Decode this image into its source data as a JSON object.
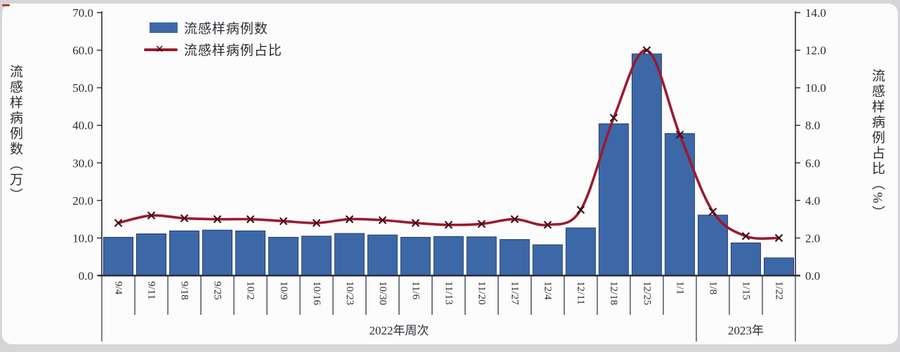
{
  "page": {
    "background": "#d6d6d8",
    "card_background": "#fcfcfd"
  },
  "artifact": {
    "red_dash_color": "#c0392b"
  },
  "colors": {
    "bar": "#3D68A8",
    "bar_border": "#1E3A68",
    "line": "#9A1B2E",
    "marker": "#3F0B16",
    "axis": "#2B2B3C",
    "text": "#2E2A33"
  },
  "legend": {
    "bar_label": "流感样病例数",
    "line_label": "流感样病例占比"
  },
  "chart_data": {
    "type": "bar",
    "combo": "bar+line",
    "grid": false,
    "legend_position": "top-left-inside",
    "categories": [
      "9/4",
      "9/11",
      "9/18",
      "9/25",
      "10/2",
      "10/9",
      "10/16",
      "10/23",
      "10/30",
      "11/6",
      "11/13",
      "11/20",
      "11/27",
      "12/4",
      "12/11",
      "12/18",
      "12/25",
      "1/1",
      "1/8",
      "1/15",
      "1/22"
    ],
    "series": [
      {
        "name": "流感样病例数",
        "type": "bar",
        "axis": "left",
        "values": [
          10.2,
          11.1,
          11.9,
          12.1,
          11.9,
          10.2,
          10.5,
          11.2,
          10.8,
          10.2,
          10.4,
          10.3,
          9.6,
          8.2,
          12.7,
          40.4,
          59.0,
          37.8,
          16.1,
          8.7,
          4.7
        ]
      },
      {
        "name": "流感样病例占比",
        "type": "line",
        "axis": "right",
        "values": [
          2.8,
          3.2,
          3.05,
          3.0,
          3.0,
          2.9,
          2.8,
          3.0,
          2.95,
          2.8,
          2.7,
          2.75,
          3.0,
          2.7,
          3.5,
          8.4,
          12.0,
          7.5,
          3.4,
          2.1,
          2.0
        ]
      }
    ],
    "left_axis": {
      "title": "流感样病例数（万）",
      "min": 0,
      "max": 70,
      "step": 10,
      "ticks": [
        "0.0",
        "10.0",
        "20.0",
        "30.0",
        "40.0",
        "50.0",
        "60.0",
        "70.0"
      ]
    },
    "right_axis": {
      "title": "流感样病例占比（%）",
      "min": 0,
      "max": 14,
      "step": 2,
      "ticks": [
        "0.0",
        "2.0",
        "4.0",
        "6.0",
        "8.0",
        "10.0",
        "12.0",
        "14.0"
      ]
    },
    "x_axis": {
      "label_rotation_deg": 90,
      "groups": [
        {
          "label": "2022年周次",
          "start": 0,
          "end": 18
        },
        {
          "label": "2023年",
          "start": 18,
          "end": 21
        }
      ]
    }
  }
}
